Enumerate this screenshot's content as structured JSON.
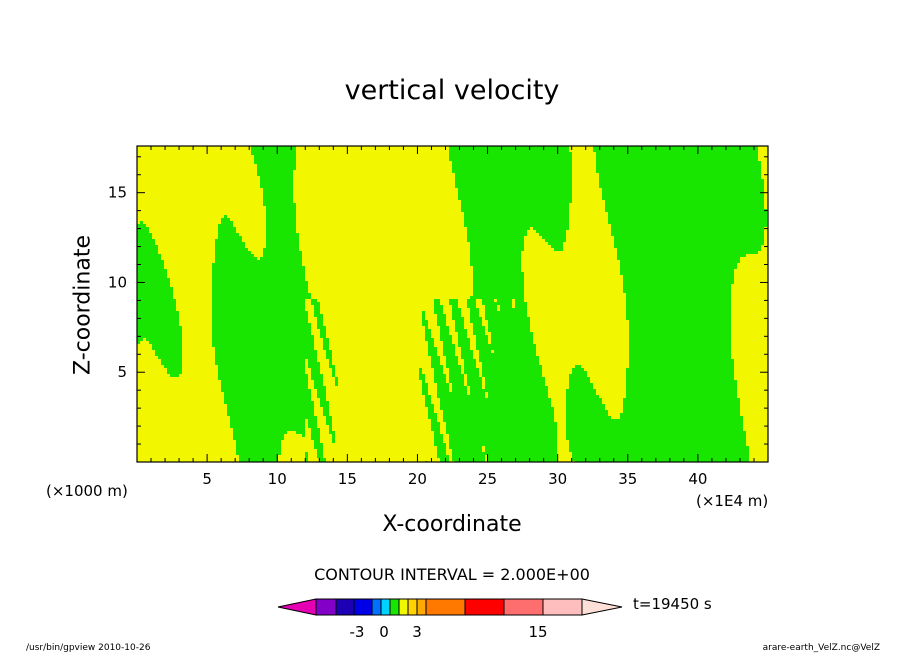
{
  "title": "vertical velocity",
  "footer": {
    "left": "/usr/bin/gpview   2010-10-26",
    "right": "arare-earth_VelZ.nc@VelZ"
  },
  "colors": {
    "positive": "#f2f700",
    "negative": "#19e600",
    "line": "#1a2a33"
  },
  "chart_data": {
    "type": "heatmap",
    "title": "vertical velocity",
    "xlabel": "X-coordinate",
    "ylabel": "Z-coordinate",
    "x_unit": "(×1000 m)",
    "x_unit_right": "(×1E4 m)",
    "xlim": [
      0,
      45
    ],
    "ylim": [
      0,
      17.6
    ],
    "xticks": [
      5,
      10,
      15,
      20,
      25,
      30,
      35,
      40
    ],
    "yticks": [
      5,
      10,
      15
    ],
    "contour_interval": "CONTOUR INTERVAL = 2.000E+00",
    "time_label": "t=19450 s",
    "colorbar": {
      "colors": [
        "#e600b4",
        "#8200c8",
        "#1e00b4",
        "#0000e6",
        "#0070ff",
        "#00d2ff",
        "#19e600",
        "#f2f700",
        "#ffd200",
        "#ffaa00",
        "#ff7800",
        "#ff0000",
        "#ff6e6e",
        "#ffbebe",
        "#ffe0d8"
      ],
      "tick_labels": [
        "-3",
        "0",
        "3",
        "15"
      ]
    },
    "regions": {
      "positive_color_name": "yellow",
      "negative_color_name": "green"
    }
  }
}
